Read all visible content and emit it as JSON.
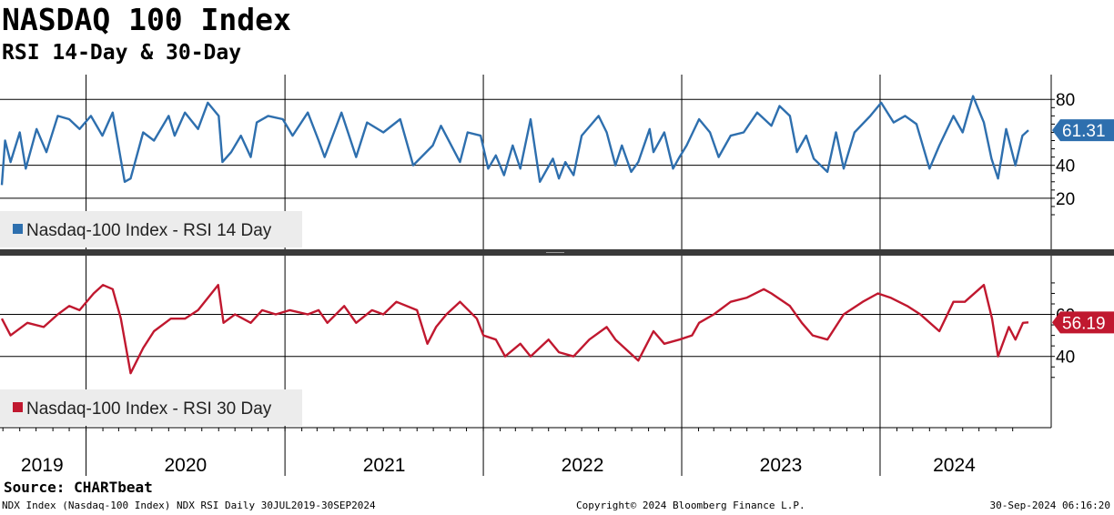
{
  "chart_data": {
    "type": "line",
    "title": "NASDAQ 100 Index",
    "subtitle": "RSI 14-Day & 30-Day",
    "x_axis": {
      "start": "2019-07-30",
      "end": "2024-09-30",
      "year_labels": [
        "2019",
        "2020",
        "2021",
        "2022",
        "2023",
        "2024"
      ]
    },
    "panels": [
      {
        "series_name": "Nasdaq-100 Index - RSI 14 Day",
        "color": "#2e6fae",
        "ylim": [
          10,
          84
        ],
        "yticks": [
          20,
          40,
          80
        ],
        "last_value_label": "61.31",
        "last_value": 61.31,
        "x": [
          "2019-07-30",
          "2019-08-05",
          "2019-08-15",
          "2019-09-01",
          "2019-09-12",
          "2019-10-02",
          "2019-10-20",
          "2019-11-10",
          "2019-12-01",
          "2019-12-20",
          "2020-01-10",
          "2020-01-31",
          "2020-02-19",
          "2020-03-12",
          "2020-03-23",
          "2020-04-15",
          "2020-05-05",
          "2020-06-01",
          "2020-06-12",
          "2020-07-01",
          "2020-07-25",
          "2020-08-12",
          "2020-09-01",
          "2020-09-08",
          "2020-09-24",
          "2020-10-12",
          "2020-10-30",
          "2020-11-10",
          "2020-12-01",
          "2020-12-28",
          "2021-01-15",
          "2021-02-12",
          "2021-03-04",
          "2021-03-15",
          "2021-04-15",
          "2021-05-12",
          "2021-06-01",
          "2021-07-01",
          "2021-08-01",
          "2021-08-25",
          "2021-09-30",
          "2021-10-15",
          "2021-11-19",
          "2021-12-03",
          "2021-12-27",
          "2022-01-10",
          "2022-01-24",
          "2022-02-08",
          "2022-02-24",
          "2022-03-10",
          "2022-03-29",
          "2022-04-15",
          "2022-05-09",
          "2022-05-20",
          "2022-06-01",
          "2022-06-16",
          "2022-07-01",
          "2022-08-01",
          "2022-08-16",
          "2022-09-01",
          "2022-09-13",
          "2022-09-30",
          "2022-10-13",
          "2022-11-03",
          "2022-11-10",
          "2022-11-30",
          "2022-12-16",
          "2022-12-28",
          "2023-01-10",
          "2023-02-02",
          "2023-02-22",
          "2023-03-10",
          "2023-04-01",
          "2023-04-25",
          "2023-05-20",
          "2023-06-15",
          "2023-06-30",
          "2023-07-19",
          "2023-08-01",
          "2023-08-18",
          "2023-09-01",
          "2023-09-26",
          "2023-10-12",
          "2023-10-26",
          "2023-11-15",
          "2023-12-14",
          "2024-01-03",
          "2024-01-26",
          "2024-02-16",
          "2024-03-08",
          "2024-04-01",
          "2024-04-19",
          "2024-05-15",
          "2024-06-01",
          "2024-06-20",
          "2024-07-10",
          "2024-07-24",
          "2024-08-05",
          "2024-08-20",
          "2024-09-06",
          "2024-09-19",
          "2024-09-30"
        ],
        "values": [
          28,
          55,
          42,
          60,
          38,
          62,
          48,
          70,
          68,
          62,
          70,
          58,
          72,
          30,
          32,
          60,
          55,
          70,
          58,
          72,
          62,
          78,
          70,
          42,
          48,
          58,
          45,
          66,
          70,
          68,
          58,
          72,
          55,
          45,
          72,
          45,
          66,
          60,
          68,
          40,
          52,
          64,
          42,
          60,
          58,
          38,
          46,
          34,
          52,
          38,
          68,
          30,
          44,
          32,
          42,
          34,
          58,
          70,
          60,
          40,
          52,
          36,
          42,
          62,
          48,
          60,
          38,
          45,
          52,
          68,
          60,
          45,
          58,
          60,
          72,
          64,
          76,
          70,
          48,
          58,
          44,
          36,
          60,
          38,
          60,
          70,
          78,
          66,
          70,
          65,
          38,
          52,
          70,
          60,
          82,
          66,
          44,
          32,
          62,
          40,
          58,
          61.31
        ]
      },
      {
        "series_name": "Nasdaq-100 Index - RSI 30 Day",
        "color": "#c0182f",
        "ylim": [
          26,
          78
        ],
        "yticks": [
          40,
          60
        ],
        "last_value_label": "56.19",
        "last_value": 56.19,
        "x": [
          "2019-07-30",
          "2019-08-15",
          "2019-09-15",
          "2019-10-15",
          "2019-11-10",
          "2019-12-01",
          "2019-12-20",
          "2020-01-15",
          "2020-02-01",
          "2020-02-19",
          "2020-03-05",
          "2020-03-23",
          "2020-04-15",
          "2020-05-05",
          "2020-06-05",
          "2020-07-01",
          "2020-07-25",
          "2020-08-31",
          "2020-09-10",
          "2020-10-01",
          "2020-10-30",
          "2020-11-20",
          "2020-12-15",
          "2021-01-10",
          "2021-02-12",
          "2021-03-04",
          "2021-03-20",
          "2021-04-20",
          "2021-05-12",
          "2021-06-10",
          "2021-07-01",
          "2021-07-25",
          "2021-09-01",
          "2021-09-20",
          "2021-10-06",
          "2021-10-25",
          "2021-11-19",
          "2021-12-20",
          "2022-01-01",
          "2022-01-24",
          "2022-02-10",
          "2022-03-10",
          "2022-03-29",
          "2022-05-01",
          "2022-05-20",
          "2022-06-16",
          "2022-07-15",
          "2022-08-16",
          "2022-09-01",
          "2022-10-13",
          "2022-11-10",
          "2022-11-30",
          "2022-12-28",
          "2023-01-20",
          "2023-02-02",
          "2023-03-01",
          "2023-04-01",
          "2023-05-01",
          "2023-06-01",
          "2023-06-15",
          "2023-07-19",
          "2023-08-10",
          "2023-08-30",
          "2023-09-26",
          "2023-10-26",
          "2023-11-30",
          "2023-12-28",
          "2024-01-20",
          "2024-02-20",
          "2024-03-15",
          "2024-04-19",
          "2024-05-15",
          "2024-06-05",
          "2024-07-10",
          "2024-07-25",
          "2024-08-05",
          "2024-08-25",
          "2024-09-06",
          "2024-09-20",
          "2024-09-30"
        ],
        "values": [
          58,
          50,
          56,
          54,
          60,
          64,
          62,
          70,
          74,
          72,
          58,
          32,
          44,
          52,
          58,
          58,
          62,
          74,
          56,
          60,
          56,
          62,
          60,
          62,
          60,
          62,
          56,
          64,
          56,
          62,
          60,
          66,
          62,
          46,
          54,
          60,
          66,
          58,
          50,
          48,
          40,
          46,
          40,
          48,
          42,
          40,
          48,
          54,
          48,
          38,
          52,
          46,
          48,
          50,
          56,
          60,
          66,
          68,
          72,
          70,
          64,
          56,
          50,
          48,
          60,
          66,
          70,
          68,
          64,
          60,
          52,
          66,
          66,
          74,
          58,
          40,
          54,
          48,
          56,
          56.19
        ]
      }
    ],
    "source": "Source: CHARTbeat",
    "footer_left": "NDX Index (Nasdaq-100 Index) NDX RSI  Daily 30JUL2019-30SEP2024",
    "footer_center": "Copyright© 2024 Bloomberg Finance L.P.",
    "footer_right": "30-Sep-2024 06:16:20"
  }
}
